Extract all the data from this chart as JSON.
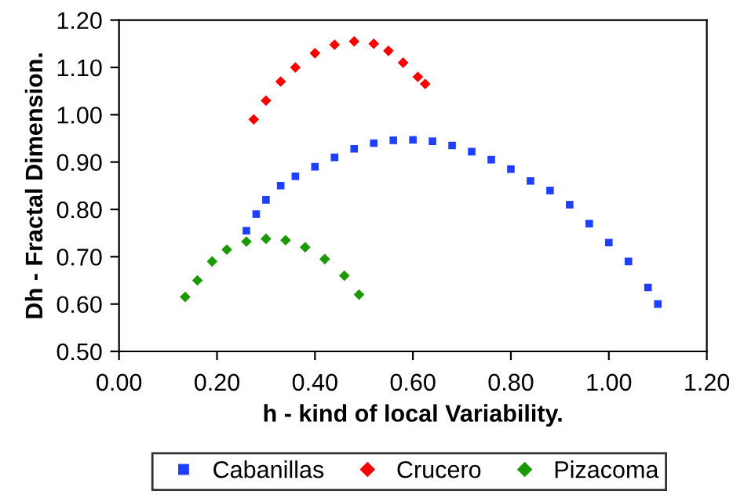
{
  "chart_data": {
    "type": "scatter",
    "xlabel": "h - kind of local Variability.",
    "ylabel": "Dh - Fractal Dimension.",
    "xlim": [
      0,
      1.2
    ],
    "xticks": [
      {
        "value": 0,
        "label": "0.00"
      },
      {
        "value": 0.2,
        "label": "0.20"
      },
      {
        "value": 0.4,
        "label": "0.40"
      },
      {
        "value": 0.6,
        "label": "0.60"
      },
      {
        "value": 0.8,
        "label": "0.80"
      },
      {
        "value": 1.0,
        "label": "1.00"
      },
      {
        "value": 1.2,
        "label": "1.20"
      }
    ],
    "ylim": [
      0.5,
      1.2
    ],
    "yticks": [
      {
        "value": 0.5,
        "label": "0.50"
      },
      {
        "value": 0.6,
        "label": "0.60"
      },
      {
        "value": 0.7,
        "label": "0.70"
      },
      {
        "value": 0.8,
        "label": "0.80"
      },
      {
        "value": 0.9,
        "label": "0.90"
      },
      {
        "value": 1.0,
        "label": "1.00"
      },
      {
        "value": 1.1,
        "label": "1.10"
      },
      {
        "value": 1.2,
        "label": "1.20"
      }
    ],
    "grid": false,
    "legend": "bottom",
    "series": [
      {
        "name": "Cabanillas",
        "color": "#1f3fff",
        "marker": "square",
        "x": [
          0.26,
          0.28,
          0.3,
          0.33,
          0.36,
          0.4,
          0.44,
          0.48,
          0.52,
          0.56,
          0.6,
          0.64,
          0.68,
          0.72,
          0.76,
          0.8,
          0.84,
          0.88,
          0.92,
          0.96,
          1.0,
          1.04,
          1.08,
          1.1
        ],
        "values": [
          0.755,
          0.79,
          0.82,
          0.85,
          0.87,
          0.89,
          0.91,
          0.928,
          0.94,
          0.946,
          0.947,
          0.944,
          0.935,
          0.922,
          0.905,
          0.885,
          0.86,
          0.84,
          0.81,
          0.77,
          0.73,
          0.69,
          0.635,
          0.6
        ]
      },
      {
        "name": "Crucero",
        "color": "#ff0000",
        "marker": "diamond",
        "x": [
          0.275,
          0.3,
          0.33,
          0.36,
          0.4,
          0.44,
          0.48,
          0.52,
          0.55,
          0.58,
          0.61,
          0.625
        ],
        "values": [
          0.99,
          1.03,
          1.07,
          1.1,
          1.13,
          1.148,
          1.155,
          1.15,
          1.135,
          1.11,
          1.08,
          1.065
        ]
      },
      {
        "name": "Pizacoma",
        "color": "#1a9a00",
        "marker": "diamond",
        "x": [
          0.135,
          0.16,
          0.19,
          0.22,
          0.26,
          0.3,
          0.34,
          0.38,
          0.42,
          0.46,
          0.49
        ],
        "values": [
          0.615,
          0.65,
          0.69,
          0.715,
          0.732,
          0.738,
          0.735,
          0.72,
          0.695,
          0.66,
          0.62
        ]
      }
    ]
  }
}
